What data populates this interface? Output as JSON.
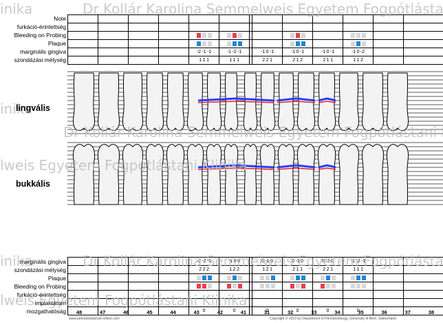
{
  "watermark": {
    "lines": [
      "inika",
      "Dr Kollár Karolina Semmelweis Egyetem Fogpótlástani Klinika",
      "lweis Egyetem Fogpótlástani Klinika",
      "Dr Kollár Karolina Semmelweis Egyetem Fogpótlástani Klinika"
    ]
  },
  "upper": {
    "labels": [
      "Note",
      "furkáció-érintettség",
      "Bleeding on Probing",
      "Plaque",
      "marginális gingiva",
      "szondázási mélység"
    ],
    "bleeding": [
      [],
      [],
      [],
      [],
      [
        "r",
        "g",
        "g"
      ],
      [
        "g",
        "r",
        "g"
      ],
      [],
      [
        "g",
        "r",
        "g"
      ],
      [],
      [
        "g",
        "g",
        "g"
      ],
      []
    ],
    "plaque": [
      [],
      [],
      [],
      [],
      [
        "b",
        "g",
        "g"
      ],
      [
        "g",
        "b",
        "b"
      ],
      [],
      [
        "g",
        "b",
        "b"
      ],
      [],
      [
        "g",
        "b",
        "g"
      ],
      []
    ],
    "gingiva": [
      "",
      "",
      "",
      "",
      "-2 -1 -1",
      "-1 -2 -1",
      "",
      "-1 0 -1",
      "-1 0 -2",
      "",
      ""
    ],
    "depth": [
      "",
      "",
      "",
      "",
      "1 1 1",
      "2 2 1",
      "",
      "2 1 2",
      "1 1 2",
      "",
      ""
    ],
    "gingiva_cols": [
      "",
      "",
      "",
      "",
      "-2 -1 -1",
      "-1 -2 -1",
      "-1 0 -1",
      "-1 0 -1",
      "-1 0 -1",
      "-1 0 -2",
      ""
    ],
    "depth_cols": [
      "",
      "",
      "",
      "",
      "1 1 1",
      "1 1 1",
      "2 2 1",
      "2 1 2",
      "2 1 1",
      "1 1 2",
      ""
    ]
  },
  "section_labels": {
    "lingual": "lingvális",
    "buccal": "bukkális"
  },
  "lower": {
    "labels": [
      "marginális gingiva",
      "szondázási mélység",
      "Plaque",
      "Bleeding on Probing",
      "furkáció-érintettség",
      "implantátum",
      "mozgathatóság"
    ],
    "gingiva": [
      "",
      "",
      "",
      "",
      "-2 -2 -1",
      "-1 0 0",
      "0 -1 0",
      "0 -1 0",
      "0 -1 0",
      "-1 -2 -1",
      ""
    ],
    "depth": [
      "",
      "",
      "",
      "",
      "2 2 2",
      "1 2 2",
      "1 2 1",
      "2 1 1",
      "2 2 1",
      "1 1 1",
      ""
    ],
    "plaque": [
      [],
      [],
      [],
      [],
      [
        "g",
        "b",
        "b"
      ],
      [
        "g",
        "b",
        "g"
      ],
      [
        "g",
        "g",
        "b"
      ],
      [
        "g",
        "b",
        "b"
      ],
      [
        "g",
        "b",
        "g"
      ],
      [
        "g",
        "b",
        "b"
      ],
      []
    ],
    "bleeding": [
      [],
      [],
      [],
      [],
      [
        "r",
        "r",
        "g"
      ],
      [
        "r",
        "g",
        "r"
      ],
      [
        "g",
        "g",
        "g"
      ],
      [
        "r",
        "g",
        "r"
      ],
      [
        "r",
        "g",
        "g"
      ],
      [
        "g",
        "g",
        "g"
      ],
      []
    ],
    "mobility": [
      "",
      "",
      "",
      "",
      "0",
      "0",
      "0",
      "0",
      "0",
      "0",
      ""
    ],
    "tooth_numbers": [
      "48",
      "47",
      "46",
      "45",
      "44",
      "43",
      "42",
      "41",
      "31",
      "32",
      "33",
      "34",
      "35",
      "36",
      "37",
      "38"
    ]
  },
  "footer": {
    "left": "www.periodontalchart-online.com",
    "right": "Copyright © 2013 by Department of Periodontology, University of Bern, Switzerland"
  }
}
